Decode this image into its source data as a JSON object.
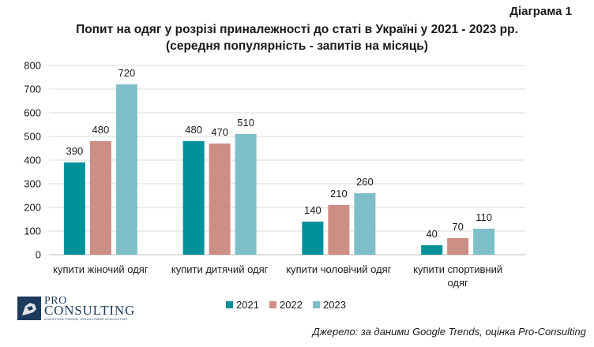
{
  "diagram_label": "Діаграма 1",
  "source": "Джерело: за даними Google Trends, оцінка Pro-Consulting",
  "logo": {
    "line1": "PRO",
    "line2": "CONSULTING",
    "tagline": "АНАЛІТИКА РИНКІВ, ФІНАНСОВИЙ КОНСАЛТИНГ"
  },
  "colors": {
    "2021": "#00919a",
    "2022": "#cd8e85",
    "2023": "#7dbfc8"
  },
  "chart_data": {
    "type": "bar",
    "title": "Попит на одяг у розрізі приналежності до статі в Україні у 2021 - 2023 рр.",
    "subtitle": "(середня популярність - запитів на місяць)",
    "xlabel": "",
    "ylabel": "",
    "ylim": [
      0,
      800
    ],
    "yticks": [
      0,
      100,
      200,
      300,
      400,
      500,
      600,
      700,
      800
    ],
    "grid": true,
    "legend_position": "bottom",
    "categories": [
      [
        "купити жіночий одяг"
      ],
      [
        "купити дитячий одяг"
      ],
      [
        "купити чоловічий одяг"
      ],
      [
        "купити спортивний",
        "одяг"
      ]
    ],
    "series": [
      {
        "name": "2021",
        "color": "#00919a",
        "values": [
          390,
          480,
          140,
          40
        ]
      },
      {
        "name": "2022",
        "color": "#cd8e85",
        "values": [
          480,
          470,
          210,
          70
        ]
      },
      {
        "name": "2023",
        "color": "#7dbfc8",
        "values": [
          720,
          510,
          260,
          110
        ]
      }
    ]
  }
}
